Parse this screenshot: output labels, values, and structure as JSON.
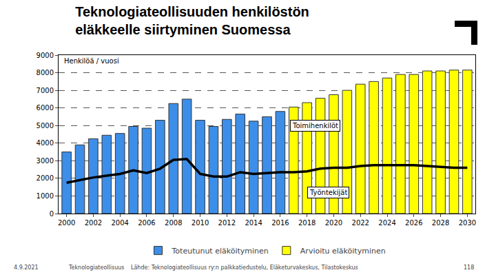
{
  "chart_data": {
    "type": "bar",
    "title": "Teknologiateollisuuden henkilöstön\neläkkeelle siirtyminen Suomessa",
    "ylabel": "Henkilöä / vuosi",
    "x": [
      2000,
      2001,
      2002,
      2003,
      2004,
      2005,
      2006,
      2007,
      2008,
      2009,
      2010,
      2011,
      2012,
      2013,
      2014,
      2015,
      2016,
      2017,
      2018,
      2019,
      2020,
      2021,
      2022,
      2023,
      2024,
      2025,
      2026,
      2027,
      2028,
      2029,
      2030
    ],
    "series": [
      {
        "name": "Toteutunut eläköityminen",
        "type": "bar",
        "color": "#3d8ee8",
        "values": [
          3500,
          3900,
          4250,
          4450,
          4550,
          4950,
          4850,
          5300,
          6250,
          6500,
          5300,
          4950,
          5350,
          5650,
          5250,
          5500,
          5800,
          null,
          null,
          null,
          null,
          null,
          null,
          null,
          null,
          null,
          null,
          null,
          null,
          null,
          null
        ]
      },
      {
        "name": "Arvioitu eläköityminen",
        "type": "bar",
        "color": "#ffff00",
        "values": [
          null,
          null,
          null,
          null,
          null,
          null,
          null,
          null,
          null,
          null,
          null,
          null,
          null,
          null,
          null,
          null,
          null,
          6050,
          6300,
          6550,
          6750,
          7000,
          7350,
          7500,
          7700,
          7900,
          7900,
          8100,
          8100,
          8150,
          8150
        ]
      },
      {
        "type": "line",
        "color": "#000000",
        "values": [
          1750,
          1900,
          2050,
          2150,
          2250,
          2450,
          2300,
          2550,
          3050,
          3100,
          2250,
          2100,
          2100,
          2350,
          2250,
          2300,
          2350,
          2350,
          2400,
          2550,
          2600,
          2600,
          2700,
          2750,
          2750,
          2750,
          2750,
          2700,
          2650,
          2600,
          2600
        ]
      }
    ],
    "annotations": [
      "Toimihenkilöt",
      "Työntekijät"
    ],
    "xlim": [
      1999.4,
      2030.6
    ],
    "xticks": [
      2000,
      2002,
      2004,
      2006,
      2008,
      2010,
      2012,
      2014,
      2016,
      2018,
      2020,
      2022,
      2024,
      2026,
      2028,
      2030
    ],
    "ylim": [
      0,
      9000
    ],
    "yticks": [
      0,
      1000,
      2000,
      3000,
      4000,
      5000,
      6000,
      7000,
      8000,
      9000
    ],
    "grid": true,
    "legend": "bottom"
  },
  "footer": {
    "date": "4.9.2021",
    "organization": "Teknologiateollisuus",
    "source": "Lähde: Teknologiateollisuus ry:n palkkatiedustelu, Eläketurvakeskus, Tilastokeskus",
    "page": "118"
  }
}
